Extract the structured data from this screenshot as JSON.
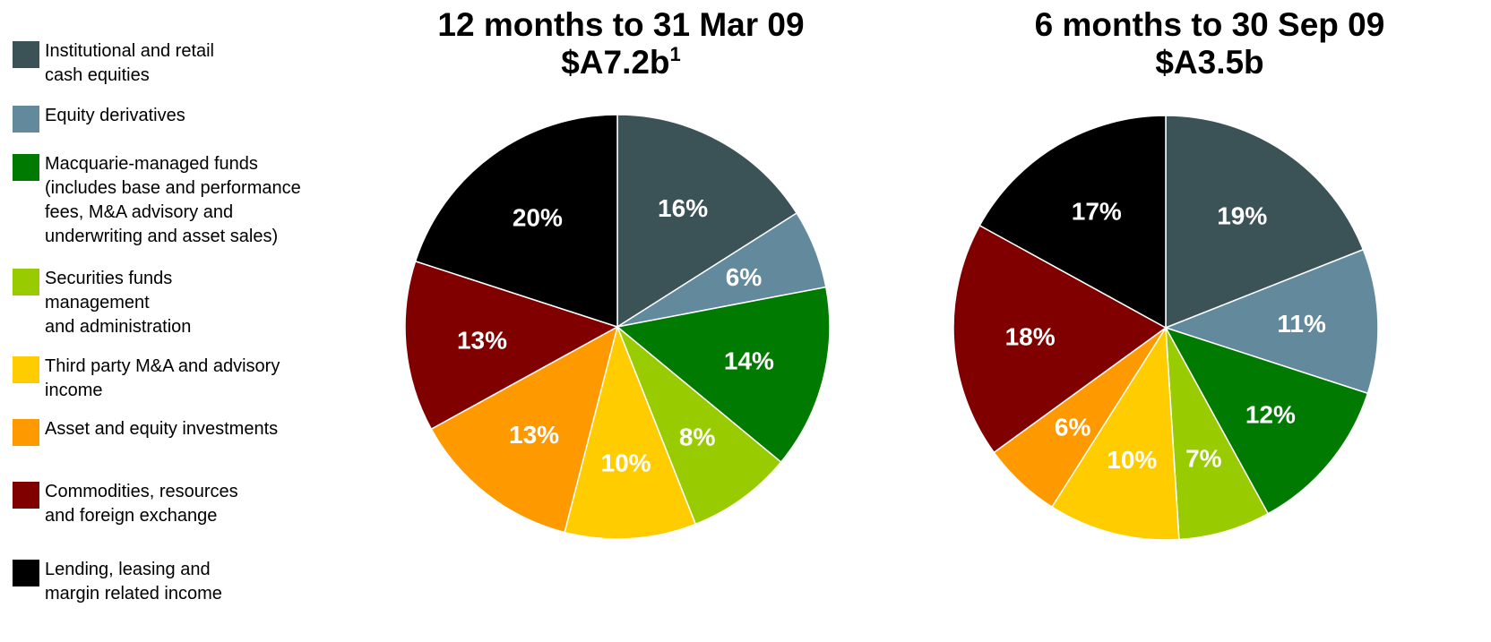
{
  "legend": {
    "categories": [
      "Institutional and retail\ncash equities",
      "Equity derivatives",
      "Macquarie-managed funds\n(includes base and performance\nfees,  M&A advisory and\nunderwriting and asset sales)",
      "Securities funds\nmanagement\nand administration",
      "Third party M&A and advisory\nincome",
      "Asset and equity investments",
      "Commodities, resources\nand foreign exchange",
      "Lending, leasing and\nmargin related income"
    ],
    "colors": [
      "#3b5257",
      "#628a9c",
      "#007a00",
      "#99cc00",
      "#ffcc00",
      "#ff9900",
      "#800000",
      "#000000"
    ]
  },
  "chart_data": [
    {
      "type": "pie",
      "title": "12 months to 31 Mar 09",
      "subtitle": "$A7.2b",
      "footnote_mark": "1",
      "values": [
        16,
        6,
        14,
        8,
        10,
        13,
        13,
        20
      ],
      "value_labels": [
        "16%",
        "6%",
        "14%",
        "8%",
        "10%",
        "13%",
        "13%",
        "20%"
      ]
    },
    {
      "type": "pie",
      "title": "6 months to 30 Sep 09",
      "subtitle": "$A3.5b",
      "values": [
        19,
        11,
        12,
        7,
        10,
        6,
        18,
        17
      ],
      "value_labels": [
        "19%",
        "11%",
        "12%",
        "7%",
        "10%",
        "6%",
        "18%",
        "17%"
      ]
    }
  ]
}
